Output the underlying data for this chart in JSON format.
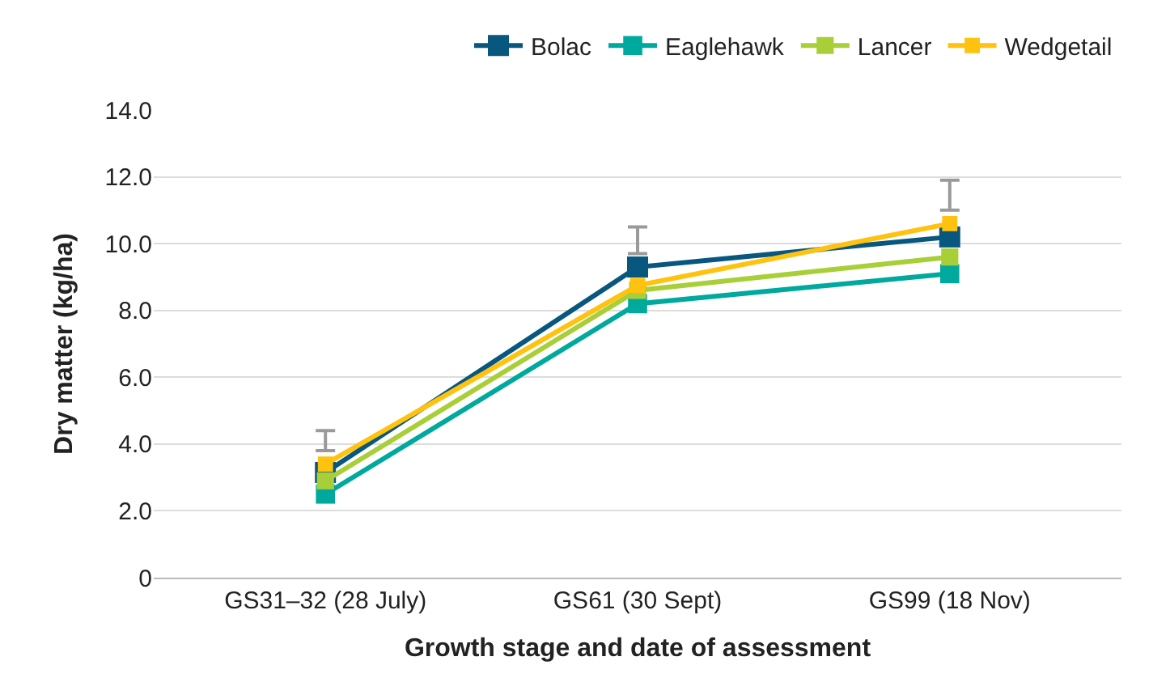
{
  "chart_data": {
    "type": "line",
    "xlabel": "Growth stage and date of assessment",
    "ylabel": "Dry matter (kg/ha)",
    "categories": [
      "GS31–32 (28 July)",
      "GS61 (30 Sept)",
      "GS99 (18 Nov)"
    ],
    "series": [
      {
        "name": "Bolac",
        "color": "#08577f",
        "values": [
          3.15,
          9.3,
          10.2
        ]
      },
      {
        "name": "Eaglehawk",
        "color": "#00a99d",
        "values": [
          2.5,
          8.2,
          9.1
        ]
      },
      {
        "name": "Lancer",
        "color": "#a8cf38",
        "values": [
          2.9,
          8.6,
          9.6
        ]
      },
      {
        "name": "Wedgetail",
        "color": "#ffc20e",
        "values": [
          3.4,
          8.75,
          10.6
        ],
        "errors": [
          [
            3.8,
            4.4
          ],
          [
            9.7,
            10.5
          ],
          [
            11.0,
            11.9
          ]
        ]
      }
    ],
    "ylim": [
      0,
      14
    ],
    "yticks": [
      {
        "value": 0,
        "label": "0"
      },
      {
        "value": 2,
        "label": "2.0"
      },
      {
        "value": 4,
        "label": "4.0"
      },
      {
        "value": 6,
        "label": "6.0"
      },
      {
        "value": 8,
        "label": "8.0"
      },
      {
        "value": 10,
        "label": "10.0"
      },
      {
        "value": 12,
        "label": "12.0"
      },
      {
        "value": 14,
        "label": "14.0"
      }
    ],
    "grid": "y",
    "legend": "top right",
    "marker": "square",
    "line_style": "solid"
  }
}
